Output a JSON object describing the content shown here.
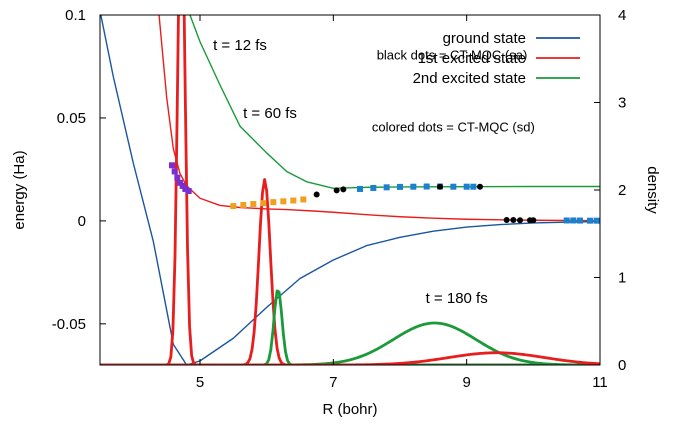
{
  "chart_data": {
    "type": "line",
    "xlabel": "R (bohr)",
    "ylabel_left": "energy (Ha)",
    "ylabel_right": "density",
    "xlim": [
      3.5,
      11
    ],
    "ylim_left": [
      -0.07,
      0.1
    ],
    "ylim_right": [
      0,
      4
    ],
    "x_ticks": [
      "5",
      "7",
      "9",
      "11"
    ],
    "x_tick_values": [
      5,
      7,
      9,
      11
    ],
    "y_ticks_left": [
      "-0.05",
      "0",
      "0.05",
      "0.1"
    ],
    "y_tick_values_left": [
      -0.05,
      0,
      0.05,
      0.1
    ],
    "y_ticks_right": [
      "0",
      "1",
      "2",
      "3",
      "4"
    ],
    "y_tick_values_right": [
      0,
      1,
      2,
      3,
      4
    ],
    "legend_position": "top-right",
    "series": [
      {
        "name": "ground state",
        "color": "#1a55a0",
        "axis": "left",
        "kind": "potential"
      },
      {
        "name": "1st excited state",
        "color": "#e81e1e",
        "axis": "left",
        "kind": "potential"
      },
      {
        "name": "2nd excited state",
        "color": "#1a9a38",
        "axis": "left",
        "kind": "potential"
      }
    ],
    "potential_curves": {
      "ground": [
        [
          3.5,
          0.102
        ],
        [
          3.7,
          0.07
        ],
        [
          4.0,
          0.028
        ],
        [
          4.3,
          -0.01
        ],
        [
          4.6,
          -0.06
        ],
        [
          4.8,
          -0.07
        ],
        [
          5.0,
          -0.068
        ],
        [
          5.5,
          -0.057
        ],
        [
          6.0,
          -0.042
        ],
        [
          6.5,
          -0.028
        ],
        [
          7.0,
          -0.019
        ],
        [
          7.5,
          -0.012
        ],
        [
          8.0,
          -0.008
        ],
        [
          8.5,
          -0.005
        ],
        [
          9.0,
          -0.003
        ],
        [
          9.5,
          -0.0018
        ],
        [
          10.0,
          -0.001
        ],
        [
          10.5,
          -0.0006
        ],
        [
          11.0,
          -0.0003
        ]
      ],
      "excited1": [
        [
          4.38,
          0.102
        ],
        [
          4.5,
          0.06
        ],
        [
          4.6,
          0.035
        ],
        [
          4.7,
          0.023
        ],
        [
          4.8,
          0.017
        ],
        [
          5.0,
          0.011
        ],
        [
          5.3,
          0.0075
        ],
        [
          5.6,
          0.0065
        ],
        [
          6.0,
          0.0058
        ],
        [
          6.3,
          0.0055
        ],
        [
          6.7,
          0.0048
        ],
        [
          7.0,
          0.0042
        ],
        [
          7.5,
          0.003
        ],
        [
          8.0,
          0.002
        ],
        [
          8.5,
          0.0013
        ],
        [
          9.0,
          0.0008
        ],
        [
          9.5,
          0.0005
        ],
        [
          10.0,
          0.0003
        ],
        [
          10.5,
          0.0002
        ],
        [
          11.0,
          0.0001
        ]
      ],
      "excited2": [
        [
          4.85,
          0.1
        ],
        [
          5.0,
          0.087
        ],
        [
          5.3,
          0.066
        ],
        [
          5.6,
          0.046
        ],
        [
          6.0,
          0.033
        ],
        [
          6.3,
          0.024
        ],
        [
          6.6,
          0.019
        ],
        [
          7.0,
          0.0158
        ],
        [
          7.5,
          0.0163
        ],
        [
          8.0,
          0.0165
        ],
        [
          9.0,
          0.0166
        ],
        [
          10.0,
          0.0167
        ],
        [
          11.0,
          0.0167
        ]
      ]
    },
    "density_packets": [
      {
        "time": "t = 12 fs",
        "series": "1st excited state",
        "center": 4.72,
        "width": 0.055,
        "peak": 5.5,
        "color": "#e81e1e"
      },
      {
        "time": "t = 60 fs",
        "series": "1st excited state",
        "center": 5.97,
        "width": 0.085,
        "peak": 2.12,
        "color": "#e81e1e"
      },
      {
        "time": "t = 60 fs",
        "series": "2nd excited state",
        "center": 6.17,
        "width": 0.06,
        "peak": 0.87,
        "color": "#1a9a38"
      },
      {
        "time": "t = 180 fs",
        "series": "2nd excited state",
        "center": 8.52,
        "width": 0.62,
        "peak": 0.48,
        "color": "#1a9a38"
      },
      {
        "time": "t = 180 fs",
        "series": "1st excited state",
        "center": 9.45,
        "width": 0.72,
        "peak": 0.14,
        "color": "#e81e1e"
      }
    ],
    "annotations": [
      {
        "text": "t = 12 fs",
        "x": 5.6,
        "y": 0.083
      },
      {
        "text": "t = 60 fs",
        "x": 6.05,
        "y": 0.05
      },
      {
        "text": "t = 180 fs",
        "x": 8.85,
        "y": -0.04
      },
      {
        "text": "black dots = CT-MQC (sa)",
        "x": 8.78,
        "y": 0.0785
      },
      {
        "text": "colored dots = CT-MQC (sd)",
        "x": 8.8,
        "y": 0.0435
      }
    ],
    "trajectory_dots": [
      {
        "label": "sd t=12 fs",
        "color": "#7a2fd0",
        "x": [
          4.58,
          4.62,
          4.66,
          4.7,
          4.74,
          4.78,
          4.83
        ],
        "y": [
          0.027,
          0.024,
          0.021,
          0.0185,
          0.017,
          0.0155,
          0.0145
        ]
      },
      {
        "label": "sd t=60 fs",
        "color": "#f0a020",
        "x": [
          5.5,
          5.65,
          5.8,
          5.95,
          6.1,
          6.25,
          6.4,
          6.55
        ],
        "y": [
          0.0072,
          0.0077,
          0.0082,
          0.0086,
          0.0091,
          0.0095,
          0.0099,
          0.0104
        ]
      },
      {
        "label": "sa t=60 fs",
        "color": "#000000",
        "x": [
          6.75,
          7.05,
          7.15
        ],
        "y": [
          0.0128,
          0.0148,
          0.0153
        ]
      },
      {
        "label": "sd t=180 fs upper",
        "color": "#1a80d0",
        "x": [
          7.4,
          7.6,
          7.8,
          8.0,
          8.2,
          8.4,
          8.6,
          8.8,
          9.0,
          9.1
        ],
        "y": [
          0.0155,
          0.016,
          0.0163,
          0.0165,
          0.0166,
          0.0167,
          0.0167,
          0.0166,
          0.0166,
          0.0166
        ]
      },
      {
        "label": "sa t=180 fs upper",
        "color": "#000000",
        "x": [
          8.6,
          9.2
        ],
        "y": [
          0.0166,
          0.0166
        ]
      },
      {
        "label": "sd t=180 fs lower",
        "color": "#1a80d0",
        "x": [
          10.5,
          10.6,
          10.7,
          10.85,
          10.95
        ],
        "y": [
          0.0002,
          0.0002,
          0.00015,
          0.0001,
          0.0001
        ]
      },
      {
        "label": "sa t=180 fs lower",
        "color": "#000000",
        "x": [
          9.6,
          9.7,
          9.8,
          9.95,
          10.0
        ],
        "y": [
          0.0004,
          0.0004,
          0.0003,
          0.0003,
          0.0003
        ]
      }
    ]
  }
}
